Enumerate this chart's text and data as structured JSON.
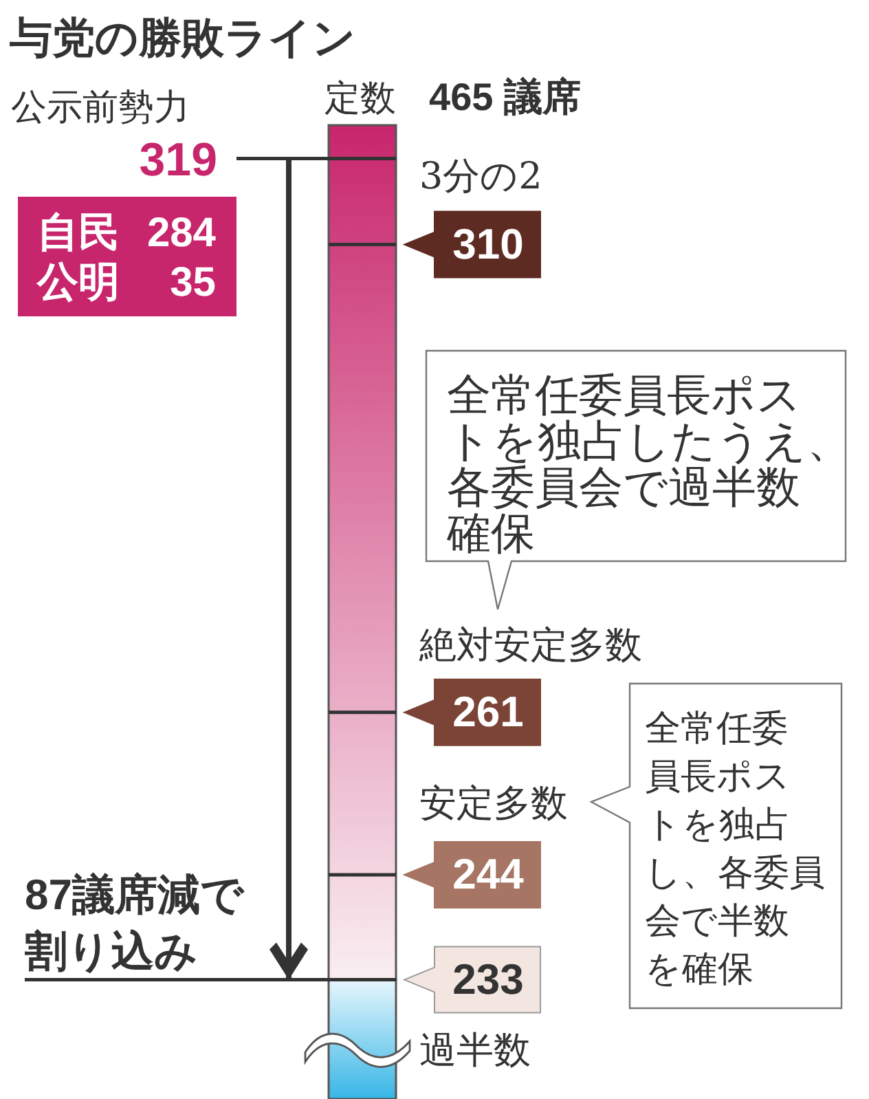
{
  "chart_data": {
    "type": "other",
    "title": "与党の勝敗ライン",
    "categories": [
      "公示前勢力",
      "3分の2",
      "絶対安定多数",
      "安定多数",
      "過半数"
    ],
    "values": [
      319,
      310,
      261,
      244,
      233
    ],
    "data_labels": true,
    "annotations": [
      "定数",
      "465 議席",
      "自民 284",
      "公明 35",
      "87議席減で割り込み",
      "全常任委員長ポストを独占したうえ、各委員会で過半数確保",
      "全常任委員長ポストを独占し、各委員会で半数を確保"
    ]
  }
}
